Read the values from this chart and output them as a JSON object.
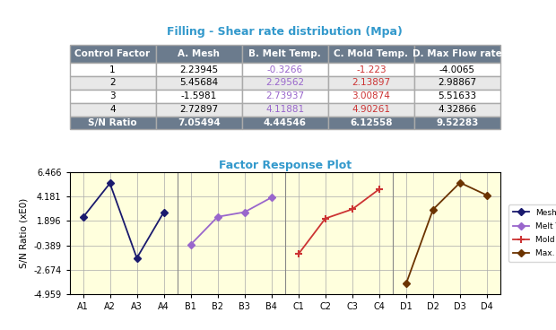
{
  "title": "Filling - Shear rate distribution (Mpa)",
  "table_headers": [
    "Control Factor",
    "A. Mesh",
    "B. Melt Temp.",
    "C. Mold Temp.",
    "D. Max Flow rate"
  ],
  "table_rows": [
    [
      "1",
      "2.23945",
      "-0.3266",
      "-1.223",
      "-4.0065"
    ],
    [
      "2",
      "5.45684",
      "2.29562",
      "2.13897",
      "2.98867"
    ],
    [
      "3",
      "-1.5981",
      "2.73937",
      "3.00874",
      "5.51633"
    ],
    [
      "4",
      "2.72897",
      "4.11881",
      "4.90261",
      "4.32866"
    ],
    [
      "S/N Ratio",
      "7.05494",
      "4.44546",
      "6.12558",
      "9.52283"
    ]
  ],
  "col_colors_data": {
    "A. Mesh": "black",
    "B. Melt Temp.": "#9966cc",
    "C. Mold Temp.": "#cc3333",
    "D. Max Flow rate": "black"
  },
  "header_bg": "#6b7b8d",
  "header_text": "white",
  "row_bg_odd": "white",
  "row_bg_even": "#e8e8e8",
  "snratio_bg": "#6b7b8d",
  "snratio_text": "white",
  "plot_title": "Factor Response Plot",
  "plot_bg": "#ffffdd",
  "x_labels": [
    "A1",
    "A2",
    "A3",
    "A4",
    "B1",
    "B2",
    "B3",
    "B4",
    "C1",
    "C2",
    "C3",
    "C4",
    "D1",
    "D2",
    "D3",
    "D4"
  ],
  "mesh_data": [
    2.23945,
    5.45684,
    -1.5981,
    2.72897
  ],
  "melt_data": [
    -0.3266,
    2.29562,
    2.73937,
    4.11881
  ],
  "mold_data": [
    -1.223,
    2.13897,
    3.00874,
    4.90261
  ],
  "maxflow_data": [
    -4.0065,
    2.98867,
    5.51633,
    4.32866
  ],
  "mesh_color": "#1a1a6e",
  "melt_color": "#9966cc",
  "mold_color": "#cc3333",
  "maxflow_color": "#6b3300",
  "y_ticks": [
    -4.959,
    -2.674,
    -0.389,
    1.896,
    4.181,
    6.466
  ],
  "y_labels": [
    "-4.959",
    "-2.674",
    "-0.389",
    "1.896",
    "4.181",
    "6.466"
  ],
  "ylabel": "S/N Ratio (xE0)"
}
